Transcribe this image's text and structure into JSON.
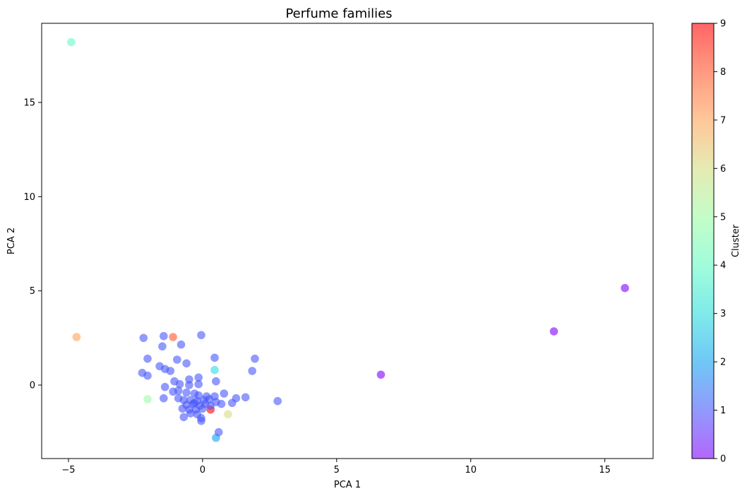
{
  "chart_data": {
    "type": "scatter",
    "title": "Perfume families",
    "xlabel": "PCA 1",
    "ylabel": "PCA 2",
    "xlim": [
      -6.0,
      16.8
    ],
    "ylim": [
      -3.9,
      19.2
    ],
    "xticks": [
      -5,
      0,
      5,
      10,
      15
    ],
    "yticks": [
      0,
      5,
      10,
      15
    ],
    "grid": false,
    "colorbar": {
      "label": "Cluster",
      "range": [
        0,
        9
      ],
      "ticks": [
        0,
        1,
        2,
        3,
        4,
        5,
        6,
        7,
        8,
        9
      ],
      "colormap": "rainbow",
      "colors": [
        "#8000ff",
        "#4856fb",
        "#10a2f0",
        "#2adddd",
        "#62fbc4",
        "#9cfba4",
        "#d4dd80",
        "#ffa256",
        "#ff562c",
        "#ff0000"
      ]
    },
    "points": [
      {
        "x": -4.9,
        "y": 18.2,
        "cluster": 4
      },
      {
        "x": -4.7,
        "y": 2.55,
        "cluster": 7
      },
      {
        "x": 15.75,
        "y": 5.15,
        "cluster": 0
      },
      {
        "x": 13.1,
        "y": 2.85,
        "cluster": 0
      },
      {
        "x": 6.65,
        "y": 0.55,
        "cluster": 0
      },
      {
        "x": -1.1,
        "y": 2.55,
        "cluster": 8
      },
      {
        "x": 0.3,
        "y": -1.3,
        "cluster": 9
      },
      {
        "x": 0.45,
        "y": 0.8,
        "cluster": 3
      },
      {
        "x": 0.5,
        "y": -2.8,
        "cluster": 2
      },
      {
        "x": -2.05,
        "y": -0.75,
        "cluster": 5
      },
      {
        "x": 0.95,
        "y": -1.55,
        "cluster": 6
      },
      {
        "x": -2.2,
        "y": 2.5,
        "cluster": 1
      },
      {
        "x": -1.45,
        "y": 2.6,
        "cluster": 1
      },
      {
        "x": -0.05,
        "y": 2.65,
        "cluster": 1
      },
      {
        "x": -1.5,
        "y": 2.05,
        "cluster": 1
      },
      {
        "x": -0.8,
        "y": 2.15,
        "cluster": 1
      },
      {
        "x": -2.05,
        "y": 1.4,
        "cluster": 1
      },
      {
        "x": -0.95,
        "y": 1.35,
        "cluster": 1
      },
      {
        "x": 0.45,
        "y": 1.45,
        "cluster": 1
      },
      {
        "x": 1.95,
        "y": 1.4,
        "cluster": 1
      },
      {
        "x": -0.6,
        "y": 1.15,
        "cluster": 1
      },
      {
        "x": -1.6,
        "y": 1.0,
        "cluster": 1
      },
      {
        "x": -1.4,
        "y": 0.85,
        "cluster": 1
      },
      {
        "x": -1.2,
        "y": 0.75,
        "cluster": 1
      },
      {
        "x": 1.85,
        "y": 0.75,
        "cluster": 1
      },
      {
        "x": -2.25,
        "y": 0.65,
        "cluster": 1
      },
      {
        "x": -2.05,
        "y": 0.5,
        "cluster": 1
      },
      {
        "x": -0.5,
        "y": 0.3,
        "cluster": 1
      },
      {
        "x": -1.05,
        "y": 0.2,
        "cluster": 1
      },
      {
        "x": 0.5,
        "y": 0.2,
        "cluster": 1
      },
      {
        "x": -0.15,
        "y": 0.4,
        "cluster": 1
      },
      {
        "x": -0.85,
        "y": 0.05,
        "cluster": 1
      },
      {
        "x": -0.5,
        "y": 0.0,
        "cluster": 1
      },
      {
        "x": -0.15,
        "y": 0.05,
        "cluster": 1
      },
      {
        "x": -1.4,
        "y": -0.1,
        "cluster": 1
      },
      {
        "x": -1.1,
        "y": -0.35,
        "cluster": 1
      },
      {
        "x": -0.9,
        "y": -0.3,
        "cluster": 1
      },
      {
        "x": -0.6,
        "y": -0.4,
        "cluster": 1
      },
      {
        "x": -0.3,
        "y": -0.45,
        "cluster": 1
      },
      {
        "x": -0.15,
        "y": -0.55,
        "cluster": 1
      },
      {
        "x": 0.15,
        "y": -0.6,
        "cluster": 1
      },
      {
        "x": 0.45,
        "y": -0.6,
        "cluster": 1
      },
      {
        "x": 0.8,
        "y": -0.45,
        "cluster": 1
      },
      {
        "x": 1.25,
        "y": -0.7,
        "cluster": 1
      },
      {
        "x": 1.6,
        "y": -0.65,
        "cluster": 1
      },
      {
        "x": -1.45,
        "y": -0.7,
        "cluster": 1
      },
      {
        "x": -0.9,
        "y": -0.7,
        "cluster": 1
      },
      {
        "x": -0.7,
        "y": -0.8,
        "cluster": 1
      },
      {
        "x": -0.45,
        "y": -0.8,
        "cluster": 1
      },
      {
        "x": -0.2,
        "y": -0.85,
        "cluster": 1
      },
      {
        "x": 0.05,
        "y": -0.8,
        "cluster": 1
      },
      {
        "x": 0.25,
        "y": -0.75,
        "cluster": 1
      },
      {
        "x": 0.5,
        "y": -0.9,
        "cluster": 1
      },
      {
        "x": 0.7,
        "y": -1.0,
        "cluster": 1
      },
      {
        "x": 1.1,
        "y": -0.95,
        "cluster": 1
      },
      {
        "x": 2.8,
        "y": -0.85,
        "cluster": 1
      },
      {
        "x": -0.6,
        "y": -1.05,
        "cluster": 1
      },
      {
        "x": -0.35,
        "y": -1.0,
        "cluster": 1
      },
      {
        "x": -0.1,
        "y": -1.1,
        "cluster": 1
      },
      {
        "x": 0.1,
        "y": -1.0,
        "cluster": 1
      },
      {
        "x": -0.75,
        "y": -1.25,
        "cluster": 1
      },
      {
        "x": -0.5,
        "y": -1.3,
        "cluster": 1
      },
      {
        "x": -0.25,
        "y": -1.3,
        "cluster": 1
      },
      {
        "x": 0.0,
        "y": -1.25,
        "cluster": 1
      },
      {
        "x": -0.45,
        "y": -1.5,
        "cluster": 1
      },
      {
        "x": -0.2,
        "y": -1.55,
        "cluster": 1
      },
      {
        "x": -0.05,
        "y": -1.75,
        "cluster": 1
      },
      {
        "x": -0.7,
        "y": -1.7,
        "cluster": 1
      },
      {
        "x": -0.05,
        "y": -1.9,
        "cluster": 1
      },
      {
        "x": 0.6,
        "y": -2.5,
        "cluster": 1
      },
      {
        "x": -0.3,
        "y": -0.95,
        "cluster": 1
      },
      {
        "x": 0.3,
        "y": -1.1,
        "cluster": 1
      }
    ]
  }
}
